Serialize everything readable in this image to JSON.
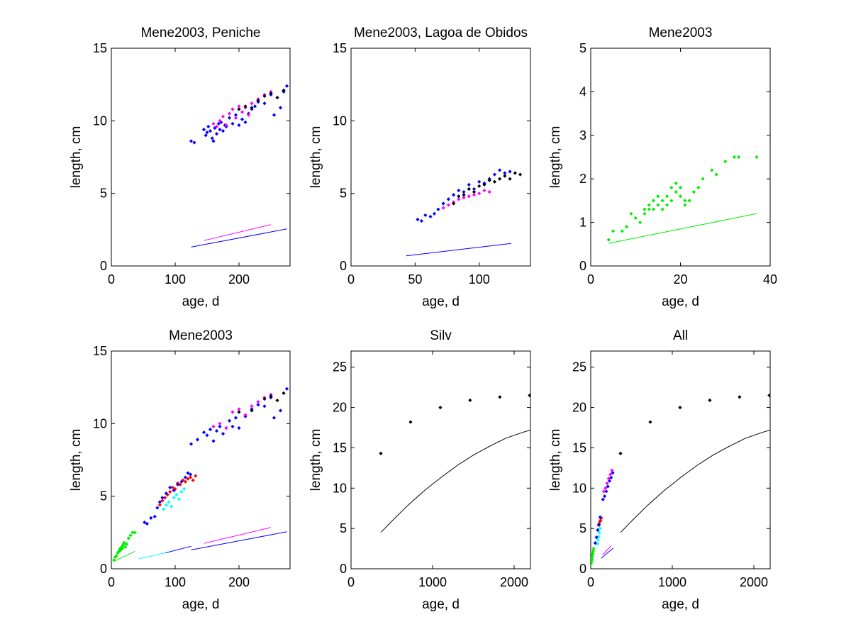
{
  "figure": {
    "panels": [
      {
        "id": "peniche",
        "title": "Mene2003, Peniche",
        "xlabel": "age, d",
        "ylabel": "length, cm",
        "xlim": [
          0,
          280
        ],
        "ylim": [
          0,
          15
        ],
        "xticks": [
          0,
          100,
          200
        ],
        "yticks": [
          0,
          5,
          10,
          15
        ]
      },
      {
        "id": "obidos",
        "title": "Mene2003, Lagoa de Obidos",
        "xlabel": "age, d",
        "ylabel": "length, cm",
        "xlim": [
          0,
          140
        ],
        "ylim": [
          0,
          15
        ],
        "xticks": [
          0,
          50,
          100
        ],
        "yticks": [
          0,
          5,
          10,
          15
        ]
      },
      {
        "id": "mene2003-larvae",
        "title": "Mene2003",
        "xlabel": "age, d",
        "ylabel": "length, cm",
        "xlim": [
          0,
          40
        ],
        "ylim": [
          0,
          5
        ],
        "xticks": [
          0,
          20,
          40
        ],
        "yticks": [
          0,
          1,
          2,
          3,
          4,
          5
        ]
      },
      {
        "id": "mene2003-combined",
        "title": "Mene2003",
        "xlabel": "age, d",
        "ylabel": "length, cm",
        "xlim": [
          0,
          280
        ],
        "ylim": [
          0,
          15
        ],
        "xticks": [
          0,
          100,
          200
        ],
        "yticks": [
          0,
          5,
          10,
          15
        ]
      },
      {
        "id": "silv",
        "title": "Silv",
        "xlabel": "age, d",
        "ylabel": "length, cm",
        "xlim": [
          0,
          2200
        ],
        "ylim": [
          0,
          27
        ],
        "xticks": [
          0,
          1000,
          2000
        ],
        "yticks": [
          0,
          5,
          10,
          15,
          20,
          25
        ]
      },
      {
        "id": "all",
        "title": "All",
        "xlabel": "age, d",
        "ylabel": "length, cm",
        "xlim": [
          0,
          2200
        ],
        "ylim": [
          0,
          27
        ],
        "xticks": [
          0,
          1000,
          2000
        ],
        "yticks": [
          0,
          5,
          10,
          15,
          20,
          25
        ]
      }
    ]
  },
  "chart_data": [
    {
      "type": "scatter",
      "title": "Mene2003, Peniche",
      "xlabel": "age, d",
      "ylabel": "length, cm",
      "xlim": [
        0,
        280
      ],
      "ylim": [
        0,
        15
      ],
      "grid": false,
      "series": [
        {
          "color": "#0000ff",
          "kind": "points",
          "x": [
            125,
            130,
            145,
            148,
            150,
            152,
            155,
            158,
            160,
            162,
            165,
            168,
            170,
            172,
            175,
            178,
            180,
            185,
            190,
            195,
            200,
            205,
            210,
            215,
            220,
            225,
            230,
            240,
            250,
            255,
            265,
            270,
            275
          ],
          "y": [
            8.6,
            8.5,
            9.4,
            9.0,
            9.2,
            9.6,
            9.3,
            8.8,
            8.6,
            9.5,
            9.1,
            9.8,
            9.4,
            9.9,
            9.3,
            9.7,
            9.6,
            10.2,
            9.8,
            10.4,
            9.7,
            10.1,
            9.9,
            10.5,
            10.8,
            11.0,
            11.3,
            11.2,
            11.8,
            10.4,
            10.9,
            12.0,
            12.4
          ]
        },
        {
          "color": "#ff00ff",
          "kind": "points",
          "x": [
            160,
            165,
            170,
            175,
            180,
            185,
            190,
            195,
            200,
            205,
            210,
            215,
            220,
            230,
            240,
            250
          ],
          "y": [
            9.8,
            9.6,
            10.0,
            10.3,
            9.7,
            10.5,
            10.8,
            10.2,
            11.0,
            10.6,
            10.9,
            10.4,
            11.2,
            11.5,
            11.8,
            12.0
          ]
        },
        {
          "color": "#000000",
          "kind": "points",
          "x": [
            200,
            210,
            220,
            230,
            240,
            250,
            260,
            270
          ],
          "y": [
            10.8,
            11.0,
            10.9,
            11.4,
            11.7,
            11.9,
            11.6,
            12.1
          ]
        },
        {
          "color": "#ff00ff",
          "kind": "line",
          "x": [
            145,
            250
          ],
          "y": [
            1.75,
            2.85
          ]
        },
        {
          "color": "#0000ff",
          "kind": "line",
          "x": [
            125,
            275
          ],
          "y": [
            1.3,
            2.55
          ]
        }
      ]
    },
    {
      "type": "scatter",
      "title": "Mene2003, Lagoa de Obidos",
      "xlabel": "age, d",
      "ylabel": "length, cm",
      "xlim": [
        0,
        140
      ],
      "ylim": [
        0,
        15
      ],
      "grid": false,
      "series": [
        {
          "color": "#0000ff",
          "kind": "points",
          "x": [
            52,
            55,
            58,
            62,
            65,
            68,
            72,
            76,
            80,
            84,
            88,
            92,
            96,
            100,
            104,
            108,
            112,
            116,
            120,
            124
          ],
          "y": [
            3.2,
            3.1,
            3.5,
            3.4,
            3.6,
            3.9,
            4.3,
            4.6,
            4.9,
            5.2,
            5.1,
            5.6,
            5.3,
            5.8,
            5.7,
            6.0,
            6.3,
            6.6,
            6.4,
            6.5
          ]
        },
        {
          "color": "#ff00ff",
          "kind": "points",
          "x": [
            72,
            76,
            80,
            84,
            88,
            92,
            96,
            100,
            104,
            108
          ],
          "y": [
            4.0,
            4.2,
            4.4,
            4.6,
            4.7,
            4.8,
            4.9,
            5.0,
            5.2,
            5.1
          ]
        },
        {
          "color": "#000000",
          "kind": "points",
          "x": [
            80,
            84,
            88,
            92,
            96,
            100,
            104,
            108,
            112,
            116,
            120,
            124,
            128,
            132
          ],
          "y": [
            4.3,
            4.8,
            4.9,
            5.3,
            5.1,
            5.5,
            5.6,
            5.9,
            5.8,
            6.0,
            6.2,
            6.0,
            6.4,
            6.3
          ]
        },
        {
          "color": "#0000ff",
          "kind": "line",
          "x": [
            43,
            125
          ],
          "y": [
            0.7,
            1.55
          ]
        }
      ]
    },
    {
      "type": "scatter",
      "title": "Mene2003",
      "xlabel": "age, d",
      "ylabel": "length, cm",
      "xlim": [
        0,
        40
      ],
      "ylim": [
        0,
        5
      ],
      "grid": false,
      "series": [
        {
          "color": "#00ee00",
          "kind": "points",
          "x": [
            4,
            5,
            7,
            8,
            9,
            10,
            11,
            12,
            12,
            13,
            13,
            14,
            14,
            15,
            15,
            16,
            16,
            17,
            17,
            18,
            18,
            19,
            19,
            20,
            20,
            21,
            21,
            22,
            23,
            24,
            25,
            27,
            28,
            30,
            32,
            33,
            37
          ],
          "y": [
            0.6,
            0.8,
            0.8,
            0.9,
            1.2,
            1.1,
            1.0,
            1.3,
            1.2,
            1.4,
            1.3,
            1.5,
            1.3,
            1.4,
            1.6,
            1.5,
            1.3,
            1.6,
            1.4,
            1.8,
            1.5,
            1.9,
            1.7,
            1.8,
            1.6,
            1.5,
            1.4,
            1.5,
            1.7,
            1.8,
            2.0,
            2.2,
            2.1,
            2.4,
            2.5,
            2.5,
            2.5
          ]
        },
        {
          "color": "#00ee00",
          "kind": "line",
          "x": [
            4,
            37
          ],
          "y": [
            0.52,
            1.2
          ]
        }
      ]
    },
    {
      "type": "scatter",
      "title": "Mene2003",
      "xlabel": "age, d",
      "ylabel": "length, cm",
      "xlim": [
        0,
        280
      ],
      "ylim": [
        0,
        15
      ],
      "grid": false,
      "series": [
        {
          "color": "#00ee00",
          "kind": "points",
          "x": [
            4,
            6,
            8,
            10,
            12,
            13,
            14,
            15,
            16,
            17,
            18,
            19,
            20,
            22,
            24,
            27,
            30,
            33,
            37
          ],
          "y": [
            0.6,
            0.8,
            0.9,
            1.1,
            1.2,
            1.3,
            1.4,
            1.3,
            1.5,
            1.4,
            1.6,
            1.7,
            1.8,
            1.5,
            1.7,
            2.1,
            2.3,
            2.5,
            2.5
          ]
        },
        {
          "color": "#00ffff",
          "kind": "points",
          "x": [
            82,
            86,
            90,
            94,
            98,
            102,
            106,
            110,
            114
          ],
          "y": [
            4.1,
            4.4,
            4.6,
            4.3,
            4.9,
            5.1,
            4.8,
            5.3,
            5.5
          ]
        },
        {
          "color": "#ff0000",
          "kind": "points",
          "x": [
            76,
            80,
            84,
            88,
            92,
            96,
            100,
            104,
            108,
            112,
            116,
            120,
            124,
            128,
            132
          ],
          "y": [
            4.4,
            4.7,
            4.9,
            5.1,
            5.3,
            5.6,
            5.5,
            5.9,
            5.8,
            6.1,
            6.0,
            6.2,
            6.3,
            6.1,
            6.4
          ]
        },
        {
          "color": "#0000ff",
          "kind": "points",
          "x": [
            52,
            56,
            62,
            68,
            72,
            76,
            80,
            86,
            92,
            98,
            104,
            110,
            116,
            120,
            124,
            125,
            135,
            145,
            150,
            155,
            160,
            165,
            170,
            175,
            180,
            185,
            190,
            195,
            200,
            210,
            220,
            230,
            240,
            250,
            255,
            265,
            275
          ],
          "y": [
            3.2,
            3.1,
            3.5,
            3.6,
            4.2,
            4.6,
            4.9,
            5.2,
            5.6,
            5.4,
            5.8,
            6.0,
            6.3,
            6.6,
            6.5,
            8.6,
            8.9,
            9.4,
            9.2,
            9.6,
            8.8,
            9.5,
            9.8,
            9.3,
            9.7,
            10.2,
            9.8,
            10.4,
            9.7,
            10.5,
            11.0,
            11.3,
            11.2,
            11.8,
            10.4,
            10.9,
            12.4
          ]
        },
        {
          "color": "#ff00ff",
          "kind": "points",
          "x": [
            160,
            170,
            180,
            190,
            200,
            210,
            220,
            230,
            240,
            250
          ],
          "y": [
            9.8,
            10.0,
            9.7,
            10.8,
            11.0,
            10.6,
            11.2,
            11.5,
            11.8,
            12.0
          ]
        },
        {
          "color": "#000000",
          "kind": "points",
          "x": [
            200,
            220,
            240,
            250,
            260,
            270
          ],
          "y": [
            10.8,
            10.9,
            11.7,
            11.9,
            11.6,
            12.1
          ]
        },
        {
          "color": "#00ee00",
          "kind": "line",
          "x": [
            4,
            37
          ],
          "y": [
            0.52,
            1.2
          ]
        },
        {
          "color": "#00ffff",
          "kind": "line",
          "x": [
            43,
            85
          ],
          "y": [
            0.7,
            1.1
          ]
        },
        {
          "color": "#0000ff",
          "kind": "line",
          "x": [
            85,
            125
          ],
          "y": [
            1.1,
            1.55
          ]
        },
        {
          "color": "#ff00ff",
          "kind": "line",
          "x": [
            145,
            250
          ],
          "y": [
            1.75,
            2.85
          ]
        },
        {
          "color": "#0000ff",
          "kind": "line",
          "x": [
            125,
            275
          ],
          "y": [
            1.3,
            2.55
          ]
        }
      ]
    },
    {
      "type": "scatter",
      "title": "Silv",
      "xlabel": "age, d",
      "ylabel": "length, cm",
      "xlim": [
        0,
        2200
      ],
      "ylim": [
        0,
        27
      ],
      "grid": false,
      "series": [
        {
          "color": "#000000",
          "kind": "points",
          "x": [
            365,
            730,
            1095,
            1460,
            1825,
            2190
          ],
          "y": [
            14.3,
            18.2,
            20.0,
            20.9,
            21.3,
            21.5
          ]
        },
        {
          "color": "#000000",
          "kind": "line",
          "x": [
            365,
            500,
            700,
            900,
            1100,
            1300,
            1500,
            1700,
            1900,
            2100,
            2200
          ],
          "y": [
            4.5,
            5.9,
            7.9,
            9.7,
            11.3,
            12.8,
            14.1,
            15.2,
            16.2,
            16.9,
            17.2
          ]
        }
      ]
    },
    {
      "type": "scatter",
      "title": "All",
      "xlabel": "age, d",
      "ylabel": "length, cm",
      "xlim": [
        0,
        2200
      ],
      "ylim": [
        0,
        27
      ],
      "grid": false,
      "series": [
        {
          "color": "#00ee00",
          "kind": "points",
          "x": [
            4,
            8,
            12,
            16,
            20,
            25,
            30,
            35
          ],
          "y": [
            0.6,
            0.9,
            1.2,
            1.4,
            1.7,
            1.9,
            2.2,
            2.5
          ]
        },
        {
          "color": "#00ffff",
          "kind": "points",
          "x": [
            82,
            90,
            98,
            106,
            114
          ],
          "y": [
            3.1,
            3.6,
            4.0,
            4.5,
            5.0
          ]
        },
        {
          "color": "#ff0000",
          "kind": "points",
          "x": [
            100,
            110,
            120,
            130
          ],
          "y": [
            5.4,
            5.8,
            6.0,
            6.3
          ]
        },
        {
          "color": "#0000ff",
          "kind": "points",
          "x": [
            55,
            70,
            85,
            100,
            115,
            150,
            170,
            190,
            210,
            230,
            250,
            270
          ],
          "y": [
            3.2,
            3.9,
            4.8,
            5.5,
            6.4,
            8.6,
            9.0,
            9.6,
            10.2,
            10.9,
            11.3,
            11.9
          ]
        },
        {
          "color": "#ff00ff",
          "kind": "points",
          "x": [
            160,
            180,
            200,
            220,
            240,
            260
          ],
          "y": [
            9.6,
            10.0,
            10.6,
            11.2,
            11.7,
            12.2
          ]
        },
        {
          "color": "#000000",
          "kind": "points",
          "x": [
            365,
            730,
            1095,
            1460,
            1825,
            2190
          ],
          "y": [
            14.3,
            18.2,
            20.0,
            20.9,
            21.3,
            21.5
          ]
        },
        {
          "color": "#00ee00",
          "kind": "line",
          "x": [
            4,
            37
          ],
          "y": [
            0.52,
            1.2
          ]
        },
        {
          "color": "#ff00ff",
          "kind": "line",
          "x": [
            145,
            250
          ],
          "y": [
            1.75,
            2.85
          ]
        },
        {
          "color": "#0000ff",
          "kind": "line",
          "x": [
            125,
            275
          ],
          "y": [
            1.3,
            2.55
          ]
        },
        {
          "color": "#000000",
          "kind": "line",
          "x": [
            365,
            500,
            700,
            900,
            1100,
            1300,
            1500,
            1700,
            1900,
            2100,
            2200
          ],
          "y": [
            4.5,
            5.9,
            7.9,
            9.7,
            11.3,
            12.8,
            14.1,
            15.2,
            16.2,
            16.9,
            17.2
          ]
        }
      ]
    }
  ]
}
